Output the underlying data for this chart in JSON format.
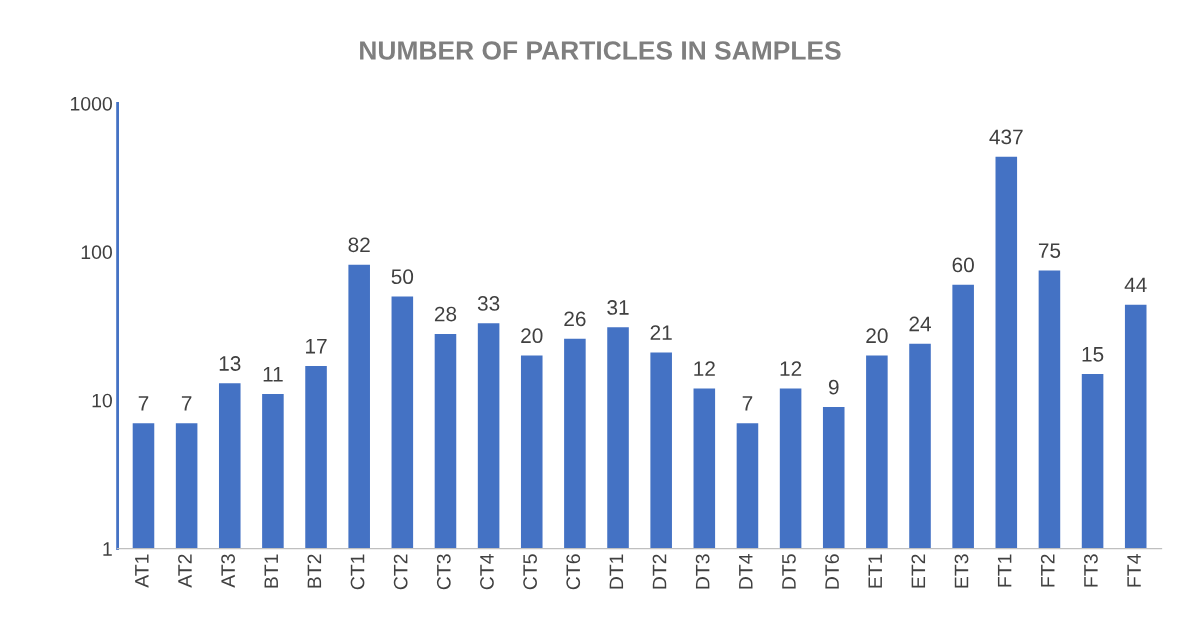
{
  "chart_data": {
    "type": "bar",
    "title": "NUMBER OF PARTICLES IN SAMPLES",
    "categories": [
      "AT1",
      "AT2",
      "AT3",
      "BT1",
      "BT2",
      "CT1",
      "CT2",
      "CT3",
      "CT4",
      "CT5",
      "CT6",
      "DT1",
      "DT2",
      "DT3",
      "DT4",
      "DT5",
      "DT6",
      "ET1",
      "ET2",
      "ET3",
      "FT1",
      "FT2",
      "FT3",
      "FT4"
    ],
    "values": [
      7,
      7,
      13,
      11,
      17,
      82,
      50,
      28,
      33,
      20,
      26,
      31,
      21,
      12,
      7,
      12,
      9,
      20,
      24,
      60,
      437,
      75,
      15,
      44
    ],
    "color": "#4472c4",
    "log": true,
    "ylim": [
      1,
      1000
    ],
    "yticks": [
      1,
      10,
      100,
      1000
    ],
    "data_labels": true,
    "grid": false
  }
}
